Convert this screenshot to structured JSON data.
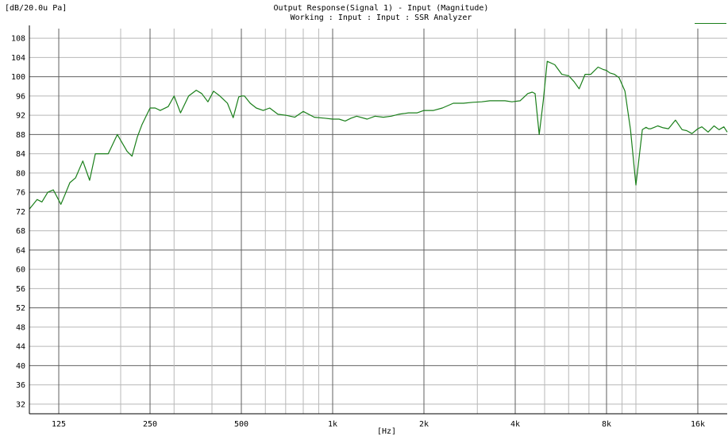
{
  "chart_data": {
    "type": "line",
    "title": "Output Response(Signal 1) - Input (Magnitude)",
    "subtitle": "Working : Input : Input : SSR Analyzer",
    "ylabel": "[dB/20.0u Pa]",
    "xlabel": "[Hz]",
    "x_scale": "log",
    "xlim": [
      100,
      20000
    ],
    "ylim": [
      30,
      110
    ],
    "x_ticks": [
      {
        "value": 125,
        "label": "125"
      },
      {
        "value": 250,
        "label": "250"
      },
      {
        "value": 500,
        "label": "500"
      },
      {
        "value": 1000,
        "label": "1k"
      },
      {
        "value": 2000,
        "label": "2k"
      },
      {
        "value": 4000,
        "label": "4k"
      },
      {
        "value": 8000,
        "label": "8k"
      },
      {
        "value": 16000,
        "label": "16k"
      }
    ],
    "y_ticks": [
      32,
      36,
      40,
      44,
      48,
      52,
      56,
      60,
      64,
      68,
      72,
      76,
      80,
      84,
      88,
      92,
      96,
      100,
      104,
      108
    ],
    "grid": true,
    "colors": {
      "series": "#1a7f1a",
      "grid": "#b8b8b8",
      "grid_major": "#606060",
      "axis": "#000000"
    },
    "series": [
      {
        "x": [
          100,
          103,
          106,
          110,
          115,
          120,
          127,
          131,
          136,
          142,
          150,
          158,
          165,
          172,
          182,
          195,
          210,
          218,
          227,
          235,
          250,
          260,
          270,
          287,
          300,
          315,
          335,
          355,
          370,
          388,
          405,
          425,
          450,
          470,
          490,
          500,
          512,
          535,
          560,
          590,
          620,
          660,
          700,
          750,
          800,
          870,
          940,
          1000,
          1050,
          1100,
          1150,
          1200,
          1300,
          1380,
          1470,
          1560,
          1650,
          1780,
          1900,
          2000,
          2150,
          2300,
          2500,
          2700,
          2900,
          3100,
          3300,
          3500,
          3700,
          3900,
          4150,
          4400,
          4550,
          4650,
          4800,
          4950,
          5100,
          5400,
          5700,
          6000,
          6250,
          6500,
          6800,
          7100,
          7500,
          7800,
          8000,
          8200,
          8500,
          8800,
          9200,
          9600,
          10000,
          10500,
          10800,
          11000,
          11200,
          11500,
          11800,
          12300,
          12800,
          13500,
          14200,
          14700,
          15300,
          16000,
          16500,
          17300,
          18100,
          18800,
          19500,
          20000
        ],
        "y": [
          72.5,
          73.5,
          74.5,
          74.0,
          76.0,
          76.5,
          73.5,
          75.5,
          78.0,
          79.0,
          82.5,
          78.5,
          84.0,
          84.0,
          84.0,
          88.0,
          84.5,
          83.5,
          87.5,
          90.0,
          93.5,
          93.5,
          93.0,
          93.8,
          96.0,
          92.5,
          96.0,
          97.2,
          96.5,
          94.8,
          97.0,
          96.0,
          94.5,
          91.5,
          95.8,
          96.0,
          96.0,
          94.5,
          93.5,
          93.0,
          93.5,
          92.2,
          92.0,
          91.6,
          92.8,
          91.6,
          91.4,
          91.2,
          91.2,
          90.8,
          91.4,
          91.8,
          91.2,
          91.8,
          91.6,
          91.8,
          92.2,
          92.5,
          92.5,
          93.0,
          93.0,
          93.5,
          94.5,
          94.5,
          94.7,
          94.8,
          95.0,
          95.0,
          95.0,
          94.8,
          95.0,
          96.5,
          96.8,
          96.5,
          88.0,
          95.0,
          103.2,
          102.5,
          100.5,
          100.2,
          99.0,
          97.5,
          100.5,
          100.5,
          102.0,
          101.5,
          101.3,
          100.8,
          100.5,
          99.8,
          97.0,
          89.0,
          77.5,
          89.0,
          89.5,
          89.2,
          89.2,
          89.5,
          89.8,
          89.4,
          89.2,
          91.0,
          89.0,
          88.8,
          88.2,
          89.2,
          89.6,
          88.5,
          89.8,
          89.0,
          89.6,
          88.5
        ]
      }
    ]
  }
}
